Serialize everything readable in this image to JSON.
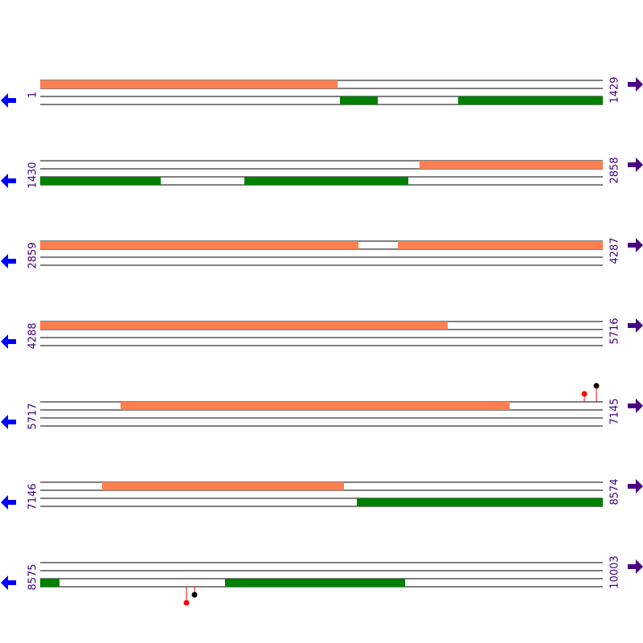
{
  "rows": [
    {
      "start": "1",
      "end": "1429"
    },
    {
      "start": "1430",
      "end": "2858"
    },
    {
      "start": "2859",
      "end": "4287"
    },
    {
      "start": "4288",
      "end": "5716"
    },
    {
      "start": "5717",
      "end": "7145"
    },
    {
      "start": "7146",
      "end": "8574"
    },
    {
      "start": "8575",
      "end": "10003"
    }
  ]
}
